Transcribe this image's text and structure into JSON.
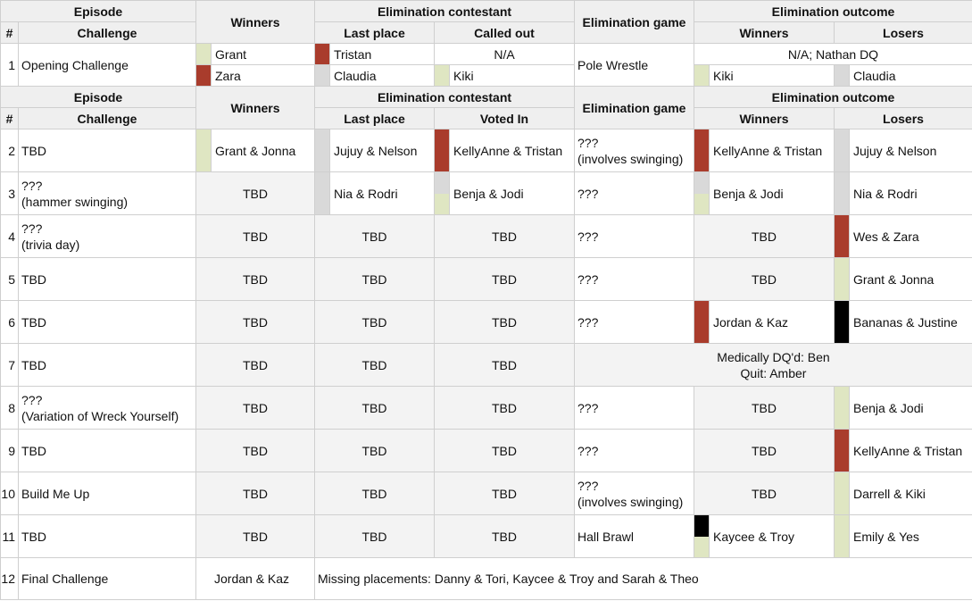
{
  "headers1": {
    "episode": "Episode",
    "winners": "Winners",
    "elim_contestant": "Elimination contestant",
    "elim_game": "Elimination game",
    "elim_outcome": "Elimination outcome",
    "num": "#",
    "challenge": "Challenge",
    "last_place": "Last place",
    "called_out": "Called out",
    "out_winners": "Winners",
    "out_losers": "Losers"
  },
  "row1": {
    "num": "1",
    "challenge": "Opening Challenge",
    "winners": [
      {
        "name": "Grant",
        "color": "green"
      },
      {
        "name": "Zara",
        "color": "red"
      }
    ],
    "last_place": [
      {
        "name": "Tristan",
        "color": "red"
      },
      {
        "name": "Claudia",
        "color": "grey"
      }
    ],
    "called_out": [
      {
        "name": "N/A",
        "color": "none"
      },
      {
        "name": "Kiki",
        "color": "green"
      }
    ],
    "game": "Pole Wrestle",
    "outcome_note": "N/A; Nathan DQ",
    "out_winners": {
      "name": "Kiki",
      "color": "green"
    },
    "out_losers": {
      "name": "Claudia",
      "color": "grey"
    }
  },
  "headers2": {
    "episode": "Episode",
    "winners": "Winners",
    "elim_contestant": "Elimination contestant",
    "elim_game": "Elimination game",
    "elim_outcome": "Elimination outcome",
    "num": "#",
    "challenge": "Challenge",
    "last_place": "Last place",
    "voted_in": "Voted In",
    "out_winners": "Winners",
    "out_losers": "Losers"
  },
  "rows": [
    {
      "num": "2",
      "challenge": "TBD",
      "winners": {
        "name": "Grant & Jonna",
        "colors": [
          "green"
        ]
      },
      "last": {
        "name": "Jujuy & Nelson",
        "colors": [
          "grey"
        ]
      },
      "voted": {
        "name": "KellyAnne & Tristan",
        "colors": [
          "red"
        ]
      },
      "game": "???\n(involves swinging)",
      "ow": {
        "name": "KellyAnne & Tristan",
        "colors": [
          "red"
        ]
      },
      "ol": {
        "name": "Jujuy & Nelson",
        "colors": [
          "grey"
        ]
      }
    },
    {
      "num": "3",
      "challenge": "???\n(hammer swinging)",
      "winners": {
        "name": "TBD"
      },
      "last": {
        "name": "Nia & Rodri",
        "colors": [
          "grey"
        ]
      },
      "voted": {
        "name": "Benja & Jodi",
        "colors": [
          "grey",
          "green"
        ]
      },
      "game": "???",
      "ow": {
        "name": "Benja & Jodi",
        "colors": [
          "grey",
          "green"
        ]
      },
      "ol": {
        "name": "Nia & Rodri",
        "colors": [
          "grey"
        ]
      }
    },
    {
      "num": "4",
      "challenge": "???\n(trivia day)",
      "winners": {
        "name": "TBD"
      },
      "last": {
        "name": "TBD"
      },
      "voted": {
        "name": "TBD"
      },
      "game": "???",
      "ow": {
        "name": "TBD"
      },
      "ol": {
        "name": "Wes & Zara",
        "colors": [
          "red"
        ]
      }
    },
    {
      "num": "5",
      "challenge": "TBD",
      "winners": {
        "name": "TBD"
      },
      "last": {
        "name": "TBD"
      },
      "voted": {
        "name": "TBD"
      },
      "game": "???",
      "ow": {
        "name": "TBD"
      },
      "ol": {
        "name": "Grant & Jonna",
        "colors": [
          "green"
        ]
      }
    },
    {
      "num": "6",
      "challenge": "TBD",
      "winners": {
        "name": "TBD"
      },
      "last": {
        "name": "TBD"
      },
      "voted": {
        "name": "TBD"
      },
      "game": "???",
      "ow": {
        "name": "Jordan & Kaz",
        "colors": [
          "red"
        ]
      },
      "ol": {
        "name": "Bananas & Justine",
        "colors": [
          "black"
        ]
      }
    },
    {
      "num": "7",
      "challenge": "TBD",
      "winners": {
        "name": "TBD"
      },
      "last": {
        "name": "TBD"
      },
      "voted": {
        "name": "TBD"
      },
      "merged_note": "Medically DQ'd: Ben\nQuit: Amber"
    },
    {
      "num": "8",
      "challenge": "???\n(Variation of Wreck Yourself)",
      "winners": {
        "name": "TBD"
      },
      "last": {
        "name": "TBD"
      },
      "voted": {
        "name": "TBD"
      },
      "game": "???",
      "ow": {
        "name": "TBD"
      },
      "ol": {
        "name": "Benja & Jodi",
        "colors": [
          "green"
        ]
      }
    },
    {
      "num": "9",
      "challenge": "TBD",
      "winners": {
        "name": "TBD"
      },
      "last": {
        "name": "TBD"
      },
      "voted": {
        "name": "TBD"
      },
      "game": "???",
      "ow": {
        "name": "TBD"
      },
      "ol": {
        "name": "KellyAnne & Tristan",
        "colors": [
          "red"
        ]
      }
    },
    {
      "num": "10",
      "challenge": "Build Me Up",
      "winners": {
        "name": "TBD"
      },
      "last": {
        "name": "TBD"
      },
      "voted": {
        "name": "TBD"
      },
      "game": "???\n(involves swinging)",
      "ow": {
        "name": "TBD"
      },
      "ol": {
        "name": "Darrell & Kiki",
        "colors": [
          "green"
        ]
      }
    },
    {
      "num": "11",
      "challenge": "TBD",
      "winners": {
        "name": "TBD"
      },
      "last": {
        "name": "TBD"
      },
      "voted": {
        "name": "TBD"
      },
      "game": "Hall Brawl",
      "ow": {
        "name": "Kaycee & Troy",
        "colors": [
          "black",
          "green"
        ]
      },
      "ol": {
        "name": "Emily & Yes",
        "colors": [
          "green"
        ]
      }
    }
  ],
  "final": {
    "num": "12",
    "challenge": "Final Challenge",
    "winners": "Jordan & Kaz",
    "missing": "Missing placements: Danny & Tori, Kaycee & Troy and Sarah & Theo"
  },
  "colors": {
    "red": "#a93c2c",
    "green": "#dfe6c2",
    "grey": "#d9d9d9",
    "black": "#000000"
  }
}
